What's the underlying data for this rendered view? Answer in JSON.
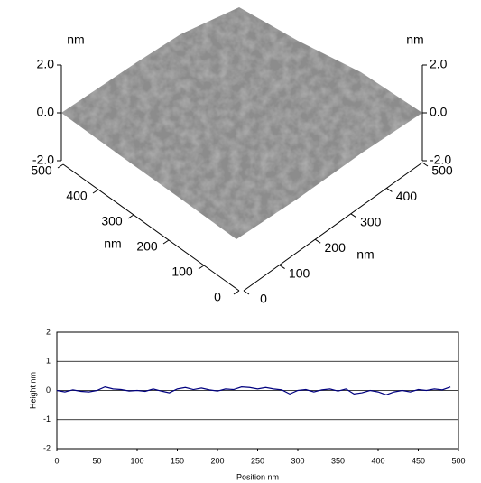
{
  "chart_data": [
    {
      "type": "surface3d",
      "zlabel": "nm",
      "xlabel": "nm",
      "ylabel": "nm",
      "zlim": [
        -2,
        2
      ],
      "zticks": [
        {
          "value": 2,
          "label": "2.0"
        },
        {
          "value": 0,
          "label": "0.0"
        },
        {
          "value": -2,
          "label": "-2.0"
        }
      ],
      "xlim": [
        0,
        500
      ],
      "xticks": [
        0,
        100,
        200,
        300,
        400,
        500
      ],
      "ylim": [
        0,
        500
      ],
      "yticks": [
        0,
        100,
        200,
        300,
        400,
        500
      ],
      "color": "#8c8c8c"
    },
    {
      "type": "line",
      "xlabel": "Position nm",
      "ylabel": "Height nm",
      "x": [
        0,
        10,
        20,
        30,
        40,
        50,
        60,
        70,
        80,
        90,
        100,
        110,
        120,
        130,
        140,
        150,
        160,
        170,
        180,
        190,
        200,
        210,
        220,
        230,
        240,
        250,
        260,
        270,
        280,
        290,
        300,
        310,
        320,
        330,
        340,
        350,
        360,
        370,
        380,
        390,
        400,
        410,
        420,
        430,
        440,
        450,
        460,
        470,
        480,
        490
      ],
      "series": [
        {
          "color": "#00007f",
          "values": [
            0.0,
            -0.05,
            0.02,
            -0.03,
            -0.05,
            0.0,
            0.12,
            0.05,
            0.03,
            -0.02,
            0.0,
            -0.03,
            0.05,
            -0.02,
            -0.08,
            0.05,
            0.1,
            0.03,
            0.08,
            0.02,
            -0.02,
            0.05,
            0.03,
            0.12,
            0.1,
            0.05,
            0.1,
            0.05,
            0.02,
            -0.12,
            0.0,
            0.03,
            -0.05,
            0.02,
            0.05,
            -0.02,
            0.05,
            -0.12,
            -0.08,
            0.0,
            -0.05,
            -0.15,
            -0.05,
            0.0,
            -0.05,
            0.03,
            0.0,
            0.05,
            0.02,
            0.12
          ]
        }
      ],
      "xlim": [
        0,
        500
      ],
      "xticks": [
        0,
        50,
        100,
        150,
        200,
        250,
        300,
        350,
        400,
        450,
        500
      ],
      "ylim": [
        -2,
        2
      ],
      "yticks": [
        -2,
        -1,
        0,
        1,
        2
      ],
      "grid": true
    }
  ]
}
